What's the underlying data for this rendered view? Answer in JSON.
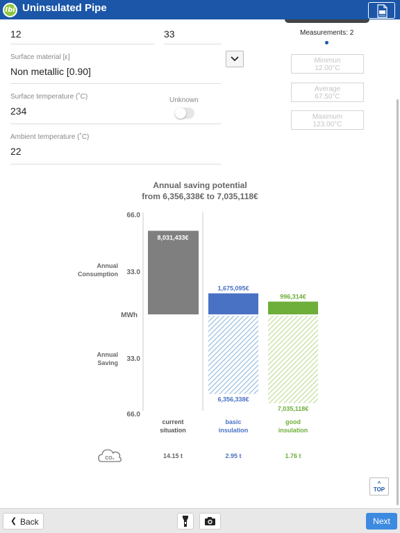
{
  "header": {
    "logo_text": "Ibi",
    "title": "Uninsulated Pipe",
    "pdf_icon": "pdf-document-icon"
  },
  "fields": {
    "dim_left": {
      "value": "12"
    },
    "dim_right": {
      "value": "33"
    },
    "surface_material": {
      "label": "Surface material [ε]",
      "value": "Non metallic [0.90]"
    },
    "surface_temperature": {
      "label": "Surface temperature (˚C)",
      "value": "234"
    },
    "ambient_temperature": {
      "label": "Ambient temperature (˚C)",
      "value": "22"
    },
    "unknown_toggle": {
      "label": "Unknown",
      "checked": false
    }
  },
  "measurements": {
    "title": "Measurements: 2",
    "minimum": {
      "label": "Minimun",
      "value": "12.00°C"
    },
    "average": {
      "label": "Average",
      "value": "67.50°C"
    },
    "maximum": {
      "label": "Maximum",
      "value": "123.00°C"
    }
  },
  "chart_title": {
    "line1": "Annual saving potential",
    "line2": "from 6,356,338€ to 7,035,118€"
  },
  "chart_data": {
    "type": "bar",
    "categories": [
      "current situation",
      "basic insulation",
      "good insulation"
    ],
    "category_lines": [
      [
        "current",
        "situation"
      ],
      [
        "basic",
        "insulation"
      ],
      [
        "good",
        "insulation"
      ]
    ],
    "axis_unit": "MWh",
    "axis_max": 66.0,
    "ticks_top": [
      "66.0",
      "33.0"
    ],
    "ticks_bottom": [
      "33.0",
      "66.0"
    ],
    "axis_labels": {
      "consumption": [
        "Annual",
        "Consumption"
      ],
      "saving": [
        "Annual",
        "Saving"
      ]
    },
    "consumption": {
      "values": [
        55.6,
        14.0,
        8.5
      ],
      "labels": [
        "8,031,433€",
        "1,675,095€",
        "996,314€"
      ]
    },
    "saving": {
      "values": [
        0,
        52.0,
        58.2
      ],
      "labels": [
        "",
        "6,356,338€",
        "7,035,118€"
      ]
    },
    "colors": {
      "current": "#7f7f7f",
      "basic": "#4a72c4",
      "basic_hatch": "#9cc0e0",
      "good": "#6eae3a",
      "good_hatch": "#c3e09c"
    },
    "co2_icon": "co2-cloud-icon",
    "co2": [
      "14.15 t",
      "2.95 t",
      "1.76 t"
    ]
  },
  "top_button": {
    "arrow": "^",
    "label": "TOP"
  },
  "footer": {
    "back_label": "Back",
    "back_icon": "chevron-left-icon",
    "flashlight_icon": "flashlight-icon",
    "camera_icon": "camera-icon",
    "next_label": "Next"
  }
}
